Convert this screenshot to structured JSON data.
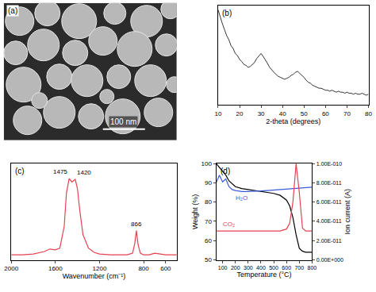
{
  "chart_data": [
    {
      "type": "image",
      "title": "(a)",
      "annotations": [
        {
          "text": "100 nm"
        }
      ]
    },
    {
      "type": "line",
      "title": "(b)",
      "xlabel": "2-theta (degrees)",
      "color": "#000000",
      "x": [
        10,
        11,
        12,
        13,
        14,
        15,
        16,
        17,
        18,
        19,
        20,
        21,
        22,
        23,
        24,
        25,
        26,
        27,
        28,
        29,
        30,
        31,
        32,
        33,
        34,
        35,
        36,
        37,
        38,
        39,
        40,
        41,
        42,
        43,
        44,
        45,
        46,
        47,
        48,
        49,
        50,
        51,
        52,
        53,
        54,
        55,
        56,
        57,
        58,
        59,
        60,
        61,
        62,
        63,
        64,
        65,
        66,
        67,
        68,
        69,
        70,
        71,
        72,
        73,
        74,
        75,
        76,
        77,
        78,
        79,
        80
      ],
      "values": [
        96,
        88,
        82,
        76,
        70,
        66,
        60,
        57,
        52,
        50,
        46,
        44,
        41,
        40,
        38,
        39,
        41,
        43,
        47,
        50,
        52,
        49,
        46,
        42,
        38,
        35,
        33,
        31,
        29,
        28,
        27,
        26,
        27,
        28,
        30,
        31,
        33,
        34,
        32,
        30,
        28,
        25,
        23,
        22,
        20,
        19,
        18,
        17,
        17,
        16,
        15,
        15,
        14,
        15,
        14,
        13,
        14,
        13,
        13,
        12,
        13,
        12,
        12,
        11,
        12,
        11,
        11,
        12,
        11,
        10,
        11
      ],
      "xlim": [
        10,
        80
      ],
      "xticks": [
        10,
        20,
        30,
        40,
        50,
        60,
        70,
        80
      ],
      "ylim": [
        0,
        100
      ],
      "grid": false,
      "tick_labels": "x"
    },
    {
      "type": "line",
      "title": "(c)",
      "xlabel": "Wavenumber (cm⁻¹)",
      "color": "#e8414f",
      "x": [
        2000,
        1900,
        1800,
        1700,
        1650,
        1600,
        1560,
        1520,
        1500,
        1475,
        1450,
        1420,
        1400,
        1380,
        1350,
        1300,
        1250,
        1200,
        1100,
        1000,
        950,
        900,
        880,
        866,
        850,
        830,
        800,
        750,
        700,
        650,
        600,
        550,
        500
      ],
      "values": [
        6,
        6,
        7,
        10,
        13,
        12,
        14,
        40,
        80,
        97,
        93,
        96,
        85,
        60,
        30,
        14,
        9,
        7,
        6,
        6,
        6,
        8,
        20,
        35,
        18,
        8,
        6,
        6,
        8,
        7,
        6,
        6,
        6
      ],
      "xlim": [
        2000,
        500
      ],
      "xticks": [
        2000,
        1600,
        1200,
        800,
        600
      ],
      "ylim": [
        0,
        115
      ],
      "annotations": [
        {
          "text": "1475",
          "x": 1475,
          "y": 97
        },
        {
          "text": "1420",
          "x": 1420,
          "y": 96
        },
        {
          "text": "866",
          "x": 866,
          "y": 35
        }
      ],
      "grid": false,
      "tick_labels": "x"
    },
    {
      "type": "line",
      "title": "(d)",
      "xlabel": "Temperature (°C)",
      "ylabel": "Weight (%)",
      "y2label": "Ion current (A)",
      "x": [
        50,
        75,
        100,
        125,
        150,
        175,
        200,
        250,
        300,
        350,
        400,
        450,
        500,
        550,
        600,
        625,
        650,
        675,
        700,
        725,
        750,
        800
      ],
      "series": [
        {
          "color": "#000000",
          "values": [
            100,
            98,
            96,
            94,
            91,
            89.5,
            88,
            87,
            86.5,
            86,
            85.5,
            85,
            84.5,
            83.5,
            81,
            78,
            72,
            63,
            56,
            54.5,
            54,
            54
          ]
        },
        {
          "name": "H₂O",
          "color": "#3b5bdb",
          "axis": "y2",
          "values": [
            8e-11,
            8.8e-11,
            8.1e-11,
            8.4e-11,
            7.6e-11,
            7.3e-11,
            7.2e-11,
            7.1e-11,
            7.1e-11,
            7.1e-11,
            7.15e-11,
            7.2e-11,
            7.25e-11,
            7.3e-11,
            7.35e-11,
            7.4e-11,
            7.4e-11,
            7.45e-11,
            7.45e-11,
            7.5e-11,
            7.5e-11,
            7.55e-11
          ]
        },
        {
          "name": "CO₂",
          "color": "#e8414f",
          "axis": "y2",
          "values": [
            3e-11,
            3e-11,
            3e-11,
            3e-11,
            3e-11,
            3e-11,
            3e-11,
            3e-11,
            3e-11,
            3e-11,
            3e-11,
            3e-11,
            3e-11,
            3e-11,
            3.2e-11,
            3.8e-11,
            6e-11,
            1e-10,
            7e-11,
            3.3e-11,
            3e-11,
            3e-11
          ]
        }
      ],
      "xlim": [
        50,
        800
      ],
      "xticks": [
        100,
        200,
        300,
        400,
        500,
        600,
        700,
        800
      ],
      "ylim": [
        50,
        100
      ],
      "yticks": [
        50,
        60,
        70,
        80,
        90,
        100
      ],
      "y2lim": [
        0,
        1e-10
      ],
      "y2ticks": [
        {
          "value": 0,
          "label": "0.00E+000"
        },
        {
          "value": 2e-11,
          "label": "2.00E-011"
        },
        {
          "value": 4e-11,
          "label": "4.00E-011"
        },
        {
          "value": 6e-11,
          "label": "6.00E-011"
        },
        {
          "value": 8e-11,
          "label": "8.00E-011"
        },
        {
          "value": 1e-10,
          "label": "1.00E-010"
        }
      ],
      "grid": false
    }
  ]
}
